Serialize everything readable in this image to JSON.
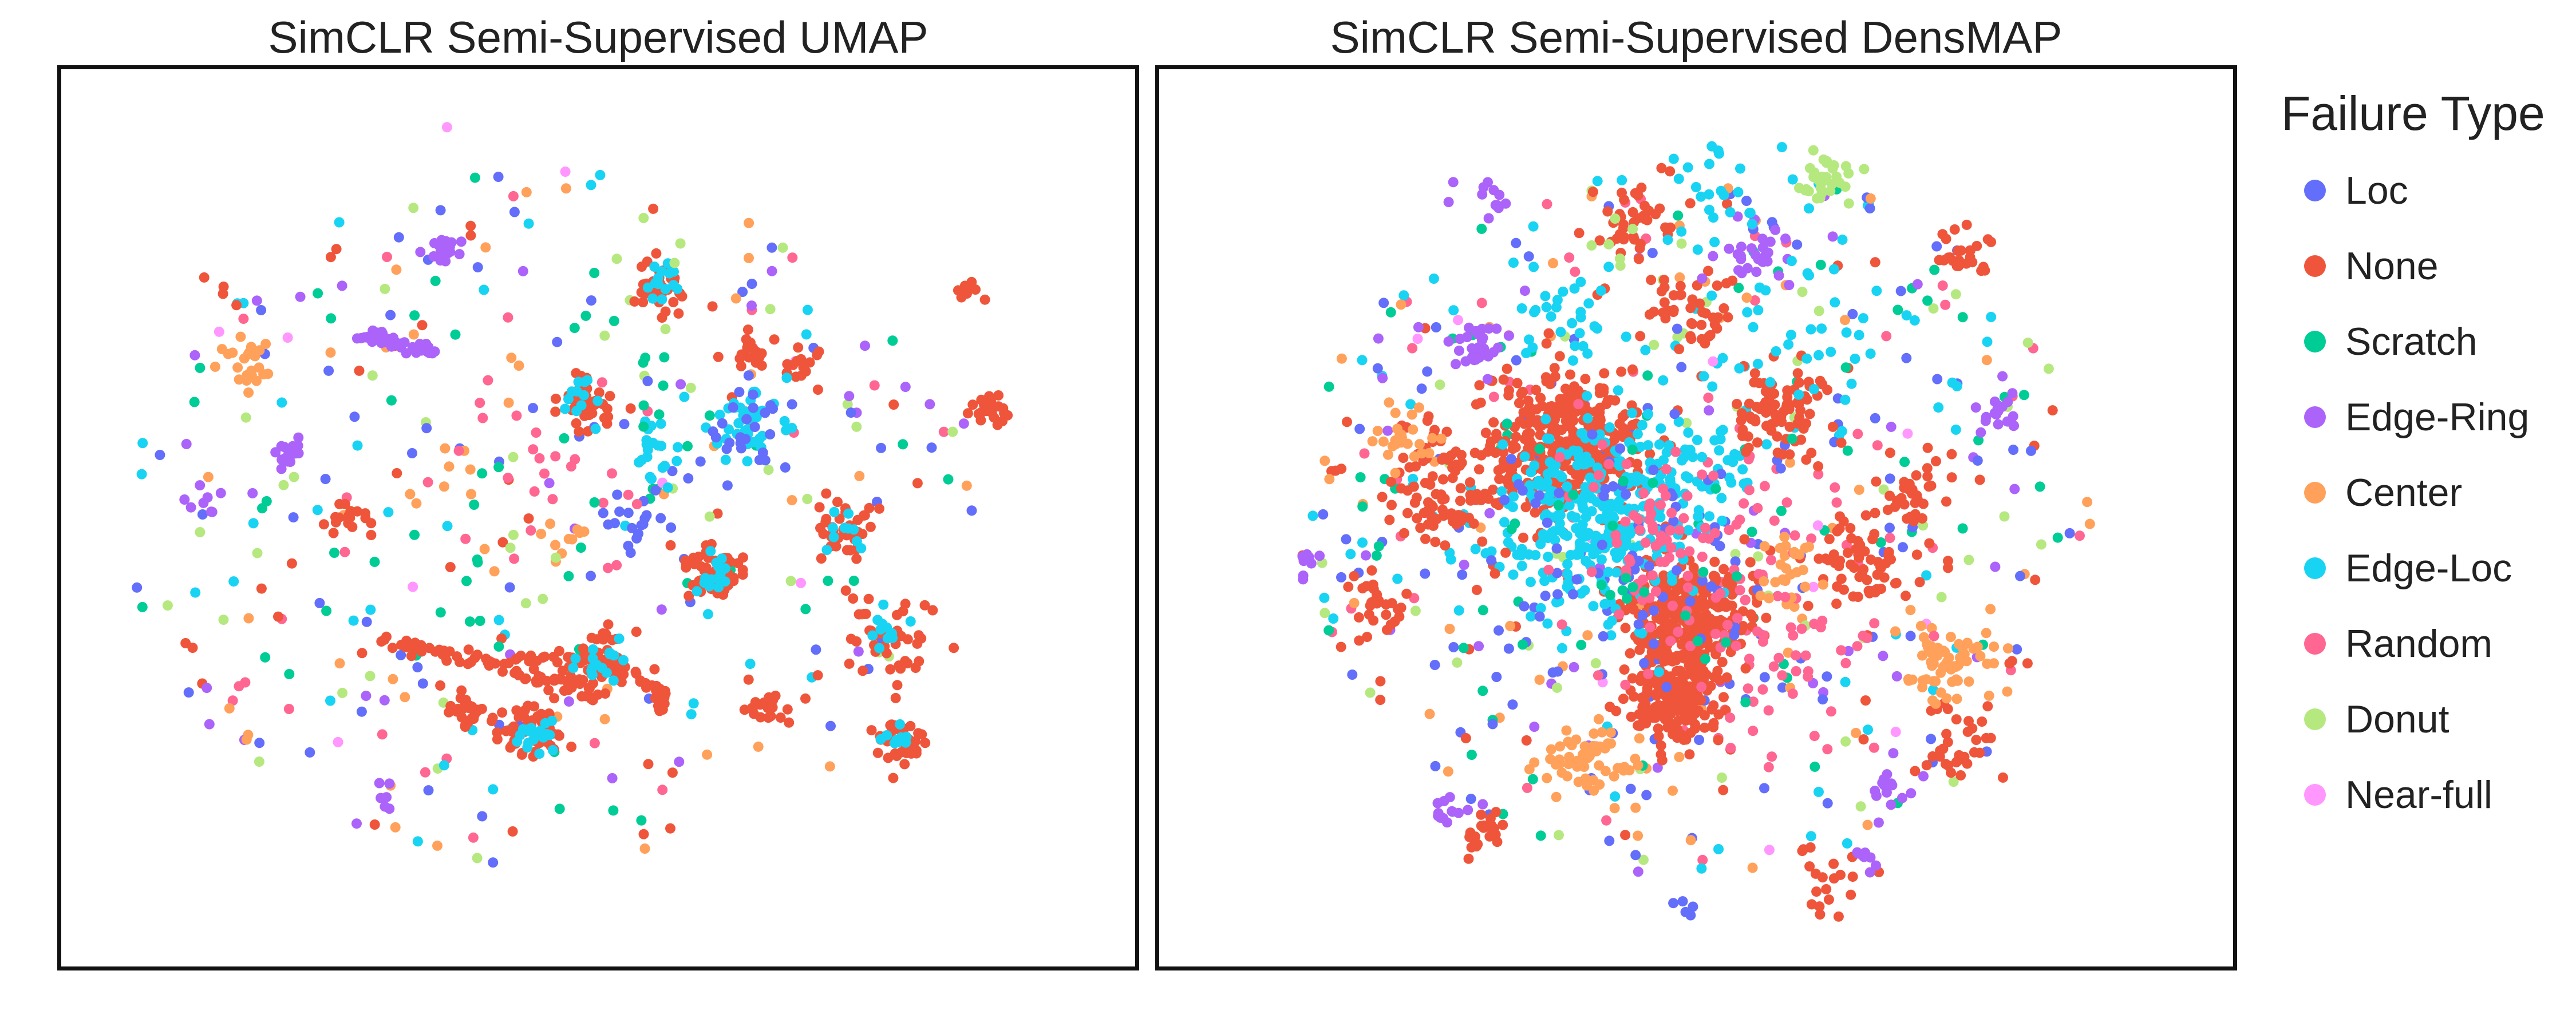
{
  "chart_data": [
    {
      "type": "scatter",
      "title": "SimCLR Semi-Supervised UMAP",
      "xlabel": "",
      "ylabel": "",
      "axes_visible": false,
      "grid": false,
      "clusters": [
        {
          "name": "None",
          "x": 0.15,
          "y": 0.25,
          "n": 4,
          "spread": 0.015
        },
        {
          "name": "None",
          "x": 0.56,
          "y": 0.24,
          "n": 40,
          "spread": 0.012
        },
        {
          "name": "Edge-Loc",
          "x": 0.56,
          "y": 0.24,
          "n": 14,
          "spread": 0.01
        },
        {
          "name": "None",
          "x": 0.49,
          "y": 0.37,
          "n": 40,
          "spread": 0.013
        },
        {
          "name": "Edge-Loc",
          "x": 0.49,
          "y": 0.37,
          "n": 12,
          "spread": 0.01
        },
        {
          "name": "None",
          "x": 0.64,
          "y": 0.31,
          "n": 20,
          "spread": 0.01
        },
        {
          "name": "None",
          "x": 0.69,
          "y": 0.33,
          "n": 14,
          "spread": 0.008
        },
        {
          "name": "Edge-Loc",
          "x": 0.64,
          "y": 0.4,
          "n": 40,
          "spread": 0.018
        },
        {
          "name": "Loc",
          "x": 0.64,
          "y": 0.4,
          "n": 25,
          "spread": 0.02
        },
        {
          "name": "None",
          "x": 0.73,
          "y": 0.51,
          "n": 40,
          "spread": 0.014
        },
        {
          "name": "Edge-Loc",
          "x": 0.73,
          "y": 0.51,
          "n": 10,
          "spread": 0.01
        },
        {
          "name": "None",
          "x": 0.61,
          "y": 0.56,
          "n": 50,
          "spread": 0.014
        },
        {
          "name": "Edge-Loc",
          "x": 0.61,
          "y": 0.56,
          "n": 16,
          "spread": 0.01
        },
        {
          "name": "None",
          "x": 0.77,
          "y": 0.63,
          "n": 40,
          "spread": 0.02
        },
        {
          "name": "Edge-Loc",
          "x": 0.77,
          "y": 0.63,
          "n": 12,
          "spread": 0.012
        },
        {
          "name": "None",
          "x": 0.78,
          "y": 0.75,
          "n": 35,
          "spread": 0.012
        },
        {
          "name": "Edge-Loc",
          "x": 0.78,
          "y": 0.75,
          "n": 10,
          "spread": 0.01
        },
        {
          "name": "None",
          "x": 0.44,
          "y": 0.74,
          "n": 50,
          "spread": 0.014
        },
        {
          "name": "Edge-Loc",
          "x": 0.44,
          "y": 0.74,
          "n": 18,
          "spread": 0.01
        },
        {
          "name": "None",
          "x": 0.38,
          "y": 0.72,
          "n": 30,
          "spread": 0.012
        },
        {
          "name": "None",
          "x": 0.5,
          "y": 0.66,
          "n": 60,
          "spread": 0.014
        },
        {
          "name": "Edge-Loc",
          "x": 0.5,
          "y": 0.66,
          "n": 16,
          "spread": 0.01
        },
        {
          "name": "None",
          "x": 0.27,
          "y": 0.5,
          "n": 20,
          "spread": 0.012
        },
        {
          "name": "None",
          "x": 0.66,
          "y": 0.71,
          "n": 20,
          "spread": 0.012
        },
        {
          "name": "None",
          "x": 0.86,
          "y": 0.38,
          "n": 25,
          "spread": 0.01
        },
        {
          "name": "None",
          "x": 0.84,
          "y": 0.25,
          "n": 10,
          "spread": 0.008
        },
        {
          "name": "Edge-Loc",
          "x": 0.55,
          "y": 0.42,
          "n": 20,
          "spread": 0.014
        },
        {
          "name": "Loc",
          "x": 0.53,
          "y": 0.5,
          "n": 18,
          "spread": 0.02
        },
        {
          "name": "Edge-Ring",
          "x": 0.36,
          "y": 0.2,
          "n": 20,
          "spread": 0.008
        },
        {
          "name": "Edge-Ring",
          "x": 0.21,
          "y": 0.43,
          "n": 18,
          "spread": 0.008
        },
        {
          "name": "Edge-Ring",
          "x": 0.13,
          "y": 0.49,
          "n": 8,
          "spread": 0.01
        },
        {
          "name": "Edge-Ring",
          "x": 0.3,
          "y": 0.81,
          "n": 6,
          "spread": 0.008
        },
        {
          "name": "Center",
          "x": 0.17,
          "y": 0.33,
          "n": 22,
          "spread": 0.012
        },
        {
          "name": "Center",
          "x": 0.47,
          "y": 0.52,
          "n": 10,
          "spread": 0.012
        },
        {
          "name": "Center",
          "x": 0.37,
          "y": 0.44,
          "n": 5,
          "spread": 0.012
        },
        {
          "name": "Scratch",
          "x": 0.54,
          "y": 0.33,
          "n": 10,
          "spread": 0.03
        },
        {
          "name": "Scratch",
          "x": 0.42,
          "y": 0.52,
          "n": 10,
          "spread": 0.04
        },
        {
          "name": "Random",
          "x": 0.45,
          "y": 0.45,
          "n": 18,
          "spread": 0.06
        },
        {
          "name": "Donut",
          "x": 0.45,
          "y": 0.56,
          "n": 4,
          "spread": 0.02
        },
        {
          "name": "Donut",
          "x": 0.55,
          "y": 0.2,
          "n": 3,
          "spread": 0.02
        },
        {
          "name": "Near-full",
          "x": 0.36,
          "y": 0.07,
          "n": 1,
          "spread": 0.003
        }
      ],
      "curves": [
        {
          "name": "None",
          "points": [
            [
              0.3,
              0.64
            ],
            [
              0.38,
              0.655
            ],
            [
              0.45,
              0.68
            ],
            [
              0.5,
              0.7
            ]
          ],
          "n": 70
        },
        {
          "name": "None",
          "points": [
            [
              0.42,
              0.66
            ],
            [
              0.5,
              0.655
            ],
            [
              0.56,
              0.69
            ],
            [
              0.56,
              0.715
            ]
          ],
          "n": 55
        },
        {
          "name": "Edge-Ring",
          "points": [
            [
              0.28,
              0.295
            ],
            [
              0.31,
              0.305
            ],
            [
              0.35,
              0.315
            ]
          ],
          "n": 40
        }
      ],
      "background": {
        "n": 340,
        "cx": 0.46,
        "cy": 0.5,
        "rx": 0.4,
        "ry": 0.39,
        "seed": 11
      }
    },
    {
      "type": "scatter",
      "title": "SimCLR Semi-Supervised DensMAP",
      "xlabel": "",
      "ylabel": "",
      "axes_visible": false,
      "grid": false,
      "clusters": [
        {
          "name": "None",
          "x": 0.38,
          "y": 0.42,
          "n": 350,
          "spread": 0.038
        },
        {
          "name": "None",
          "x": 0.49,
          "y": 0.61,
          "n": 300,
          "spread": 0.028
        },
        {
          "name": "None",
          "x": 0.48,
          "y": 0.7,
          "n": 180,
          "spread": 0.022
        },
        {
          "name": "Edge-Loc",
          "x": 0.4,
          "y": 0.5,
          "n": 260,
          "spread": 0.05
        },
        {
          "name": "Edge-Loc",
          "x": 0.47,
          "y": 0.45,
          "n": 100,
          "spread": 0.05
        },
        {
          "name": "Loc",
          "x": 0.42,
          "y": 0.56,
          "n": 80,
          "spread": 0.08
        },
        {
          "name": "Random",
          "x": 0.5,
          "y": 0.55,
          "n": 120,
          "spread": 0.07
        },
        {
          "name": "None",
          "x": 0.26,
          "y": 0.47,
          "n": 90,
          "spread": 0.03
        },
        {
          "name": "None",
          "x": 0.58,
          "y": 0.38,
          "n": 80,
          "spread": 0.025
        },
        {
          "name": "None",
          "x": 0.65,
          "y": 0.55,
          "n": 60,
          "spread": 0.025
        },
        {
          "name": "None",
          "x": 0.44,
          "y": 0.17,
          "n": 40,
          "spread": 0.02
        },
        {
          "name": "None",
          "x": 0.5,
          "y": 0.27,
          "n": 40,
          "spread": 0.02
        },
        {
          "name": "None",
          "x": 0.7,
          "y": 0.47,
          "n": 40,
          "spread": 0.025
        },
        {
          "name": "None",
          "x": 0.3,
          "y": 0.85,
          "n": 25,
          "spread": 0.012
        },
        {
          "name": "None",
          "x": 0.75,
          "y": 0.2,
          "n": 25,
          "spread": 0.012
        },
        {
          "name": "None",
          "x": 0.2,
          "y": 0.6,
          "n": 30,
          "spread": 0.015
        },
        {
          "name": "None",
          "x": 0.74,
          "y": 0.75,
          "n": 30,
          "spread": 0.02
        },
        {
          "name": "None",
          "x": 0.62,
          "y": 0.9,
          "n": 20,
          "spread": 0.02
        },
        {
          "name": "Center",
          "x": 0.4,
          "y": 0.77,
          "n": 60,
          "spread": 0.022
        },
        {
          "name": "Center",
          "x": 0.73,
          "y": 0.66,
          "n": 70,
          "spread": 0.022
        },
        {
          "name": "Center",
          "x": 0.23,
          "y": 0.41,
          "n": 25,
          "spread": 0.015
        },
        {
          "name": "Center",
          "x": 0.58,
          "y": 0.56,
          "n": 25,
          "spread": 0.02
        },
        {
          "name": "Donut",
          "x": 0.62,
          "y": 0.12,
          "n": 30,
          "spread": 0.012
        },
        {
          "name": "Donut",
          "x": 0.43,
          "y": 0.2,
          "n": 6,
          "spread": 0.01
        },
        {
          "name": "Edge-Ring",
          "x": 0.3,
          "y": 0.31,
          "n": 30,
          "spread": 0.012
        },
        {
          "name": "Edge-Ring",
          "x": 0.55,
          "y": 0.2,
          "n": 30,
          "spread": 0.02
        },
        {
          "name": "Edge-Ring",
          "x": 0.78,
          "y": 0.38,
          "n": 18,
          "spread": 0.012
        },
        {
          "name": "Edge-Ring",
          "x": 0.3,
          "y": 0.15,
          "n": 12,
          "spread": 0.015
        },
        {
          "name": "Edge-Ring",
          "x": 0.68,
          "y": 0.8,
          "n": 16,
          "spread": 0.015
        },
        {
          "name": "Edge-Ring",
          "x": 0.27,
          "y": 0.83,
          "n": 12,
          "spread": 0.01
        },
        {
          "name": "Edge-Ring",
          "x": 0.14,
          "y": 0.55,
          "n": 10,
          "spread": 0.008
        },
        {
          "name": "Edge-Ring",
          "x": 0.66,
          "y": 0.88,
          "n": 8,
          "spread": 0.008
        },
        {
          "name": "Edge-Loc",
          "x": 0.52,
          "y": 0.14,
          "n": 25,
          "spread": 0.03
        },
        {
          "name": "Edge-Loc",
          "x": 0.6,
          "y": 0.3,
          "n": 30,
          "spread": 0.04
        },
        {
          "name": "Edge-Loc",
          "x": 0.37,
          "y": 0.28,
          "n": 25,
          "spread": 0.025
        },
        {
          "name": "Loc",
          "x": 0.49,
          "y": 0.94,
          "n": 5,
          "spread": 0.006
        },
        {
          "name": "Scratch",
          "x": 0.45,
          "y": 0.55,
          "n": 30,
          "spread": 0.08
        },
        {
          "name": "Random",
          "x": 0.6,
          "y": 0.65,
          "n": 30,
          "spread": 0.05
        }
      ],
      "curves": [],
      "background": {
        "n": 520,
        "cx": 0.5,
        "cy": 0.5,
        "rx": 0.37,
        "ry": 0.4,
        "seed": 29
      }
    }
  ],
  "legend": {
    "title": "Failure Type",
    "placement": "right",
    "items": [
      {
        "label": "Loc",
        "color": "#636efa"
      },
      {
        "label": "None",
        "color": "#ef553b"
      },
      {
        "label": "Scratch",
        "color": "#00cc96"
      },
      {
        "label": "Edge-Ring",
        "color": "#ab63fa"
      },
      {
        "label": "Center",
        "color": "#ffa15a"
      },
      {
        "label": "Edge-Loc",
        "color": "#19d3f3"
      },
      {
        "label": "Random",
        "color": "#ff6692"
      },
      {
        "label": "Donut",
        "color": "#b6e880"
      },
      {
        "label": "Near-full",
        "color": "#ff97ff"
      }
    ]
  }
}
